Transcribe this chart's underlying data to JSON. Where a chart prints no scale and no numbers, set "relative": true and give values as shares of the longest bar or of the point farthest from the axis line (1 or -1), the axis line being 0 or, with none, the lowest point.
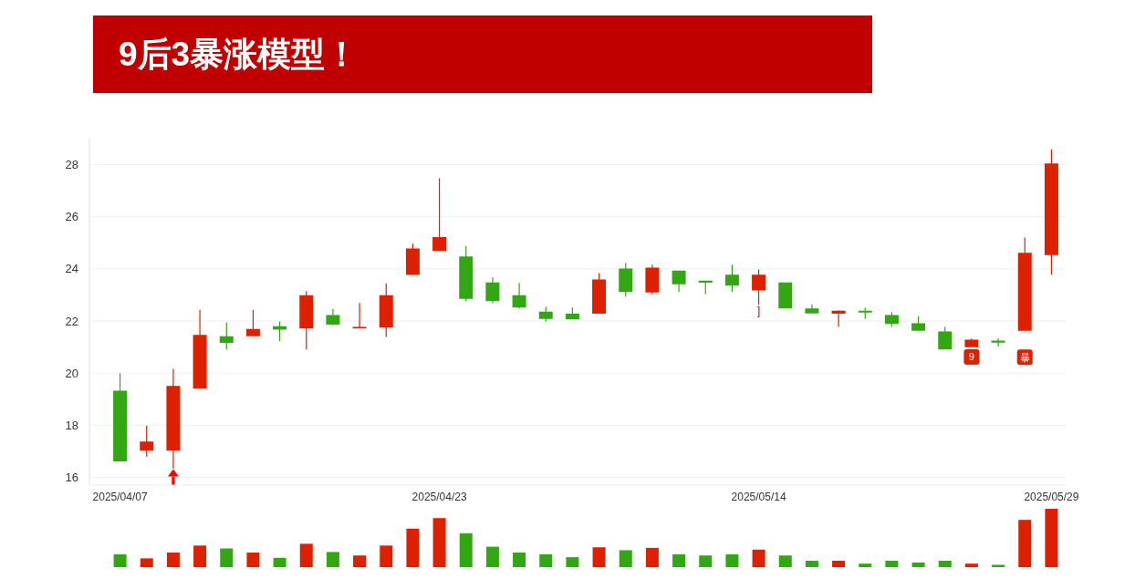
{
  "chart_data": [
    {
      "type": "candlestick",
      "title": "9后3暴涨模型！",
      "categories": [
        "2025/04/07",
        null,
        null,
        null,
        null,
        null,
        null,
        null,
        null,
        null,
        null,
        null,
        "2025/04/23",
        null,
        null,
        null,
        null,
        null,
        null,
        null,
        null,
        null,
        null,
        null,
        "2025/05/14",
        null,
        null,
        null,
        null,
        null,
        null,
        null,
        null,
        null,
        null,
        "2025/05/29"
      ],
      "ohlc": [
        [
          19.32,
          20.0,
          16.61,
          16.61
        ],
        [
          17.02,
          17.98,
          16.79,
          17.37
        ],
        [
          17.02,
          20.16,
          16.33,
          19.51
        ],
        [
          19.4,
          22.43,
          19.4,
          21.47
        ],
        [
          21.41,
          21.94,
          20.91,
          21.16
        ],
        [
          21.41,
          22.43,
          21.41,
          21.69
        ],
        [
          21.8,
          21.98,
          21.23,
          21.67
        ],
        [
          21.71,
          23.15,
          20.91,
          22.99
        ],
        [
          22.23,
          22.46,
          21.83,
          21.86
        ],
        [
          21.71,
          22.69,
          21.71,
          21.77
        ],
        [
          21.75,
          23.44,
          21.39,
          22.99
        ],
        [
          23.77,
          24.97,
          23.77,
          24.78
        ],
        [
          24.69,
          27.48,
          24.69,
          25.22
        ],
        [
          24.48,
          24.87,
          22.75,
          22.85
        ],
        [
          23.48,
          23.67,
          22.68,
          22.76
        ],
        [
          22.99,
          23.46,
          22.47,
          22.52
        ],
        [
          22.36,
          22.54,
          21.97,
          22.08
        ],
        [
          22.28,
          22.52,
          22.06,
          22.06
        ],
        [
          22.28,
          23.84,
          22.28,
          23.59
        ],
        [
          24.01,
          24.22,
          22.94,
          23.11
        ],
        [
          23.09,
          24.16,
          23.02,
          24.05
        ],
        [
          23.93,
          23.93,
          23.11,
          23.41
        ],
        [
          23.55,
          23.55,
          23.02,
          23.47
        ],
        [
          23.78,
          24.16,
          23.11,
          23.36
        ],
        [
          23.17,
          23.98,
          22.61,
          23.78
        ],
        [
          23.48,
          23.48,
          22.48,
          22.48
        ],
        [
          22.48,
          22.63,
          22.29,
          22.29
        ],
        [
          22.28,
          22.41,
          21.77,
          22.39
        ],
        [
          22.39,
          22.51,
          22.08,
          22.32
        ],
        [
          22.23,
          22.34,
          21.77,
          21.89
        ],
        [
          21.91,
          22.18,
          21.62,
          21.62
        ],
        [
          21.6,
          21.77,
          20.91,
          20.91
        ],
        [
          20.99,
          21.33,
          20.99,
          21.28
        ],
        [
          21.25,
          21.33,
          21.02,
          21.17
        ],
        [
          21.62,
          25.2,
          21.62,
          24.62
        ],
        [
          24.53,
          28.59,
          23.78,
          28.05
        ]
      ],
      "colors": [
        "#33a614",
        "#dd2100",
        "#dd2100",
        "#dd2100",
        "#33a614",
        "#dd2100",
        "#33a614",
        "#dd2100",
        "#33a614",
        "#dd2100",
        "#dd2100",
        "#dd2100",
        "#dd2100",
        "#33a614",
        "#33a614",
        "#33a614",
        "#33a614",
        "#33a614",
        "#dd2100",
        "#33a614",
        "#dd2100",
        "#33a614",
        "#33a614",
        "#33a614",
        "#dd2100",
        "#33a614",
        "#33a614",
        "#dd2100",
        "#33a614",
        "#33a614",
        "#33a614",
        "#33a614",
        "#dd2100",
        "#33a614",
        "#dd2100",
        "#dd2100"
      ],
      "series": [
        {
          "type": "scatter",
          "color": "#ff0000",
          "marker": "triangle",
          "values": [
            null,
            null,
            16.17,
            null,
            null,
            null,
            null,
            null,
            null,
            null,
            null,
            null,
            null,
            null,
            null,
            null,
            null,
            null,
            null,
            null,
            null,
            null,
            null,
            null,
            null,
            null,
            null,
            null,
            null,
            null,
            null,
            null,
            null,
            null,
            null,
            null
          ]
        },
        {
          "type": "scatter",
          "color": "#dd2100",
          "marker": "square",
          "values": [
            null,
            null,
            null,
            null,
            null,
            null,
            null,
            null,
            null,
            null,
            null,
            null,
            null,
            null,
            null,
            null,
            null,
            null,
            null,
            null,
            null,
            null,
            null,
            null,
            null,
            null,
            null,
            null,
            null,
            null,
            null,
            null,
            20.62,
            null,
            20.61,
            null
          ]
        }
      ],
      "annotations": [
        {
          "text": "]",
          "x": "2025/05/14",
          "y": 22.61
        },
        {
          "text": "9",
          "y": 20.62
        },
        {
          "text": "暴",
          "y": 20.61
        }
      ],
      "ylim": [
        15.7,
        29.0
      ],
      "yticks": [
        16,
        18,
        20,
        22,
        24,
        26,
        28
      ],
      "grid": "y"
    },
    {
      "type": "bar",
      "relative": true,
      "categories": [
        null,
        null,
        null,
        null,
        null,
        null,
        null,
        null,
        null,
        null,
        null,
        null,
        null,
        null,
        null,
        null,
        null,
        null,
        null,
        null,
        null,
        null,
        null,
        null,
        null,
        null,
        null,
        null,
        null,
        null,
        null,
        null,
        null,
        null,
        null,
        null
      ],
      "values": [
        0.22,
        0.15,
        0.25,
        0.37,
        0.32,
        0.25,
        0.16,
        0.4,
        0.26,
        0.2,
        0.37,
        0.66,
        0.84,
        0.58,
        0.35,
        0.25,
        0.22,
        0.17,
        0.34,
        0.29,
        0.33,
        0.22,
        0.2,
        0.22,
        0.3,
        0.2,
        0.11,
        0.11,
        0.06,
        0.11,
        0.08,
        0.11,
        0.06,
        0.04,
        0.81,
        1
      ],
      "colors": [
        "#33a614",
        "#dd2100",
        "#dd2100",
        "#dd2100",
        "#33a614",
        "#dd2100",
        "#33a614",
        "#dd2100",
        "#33a614",
        "#dd2100",
        "#dd2100",
        "#dd2100",
        "#dd2100",
        "#33a614",
        "#33a614",
        "#33a614",
        "#33a614",
        "#33a614",
        "#dd2100",
        "#33a614",
        "#dd2100",
        "#33a614",
        "#33a614",
        "#33a614",
        "#dd2100",
        "#33a614",
        "#33a614",
        "#dd2100",
        "#33a614",
        "#33a614",
        "#33a614",
        "#33a614",
        "#dd2100",
        "#33a614",
        "#dd2100",
        "#dd2100"
      ]
    }
  ]
}
